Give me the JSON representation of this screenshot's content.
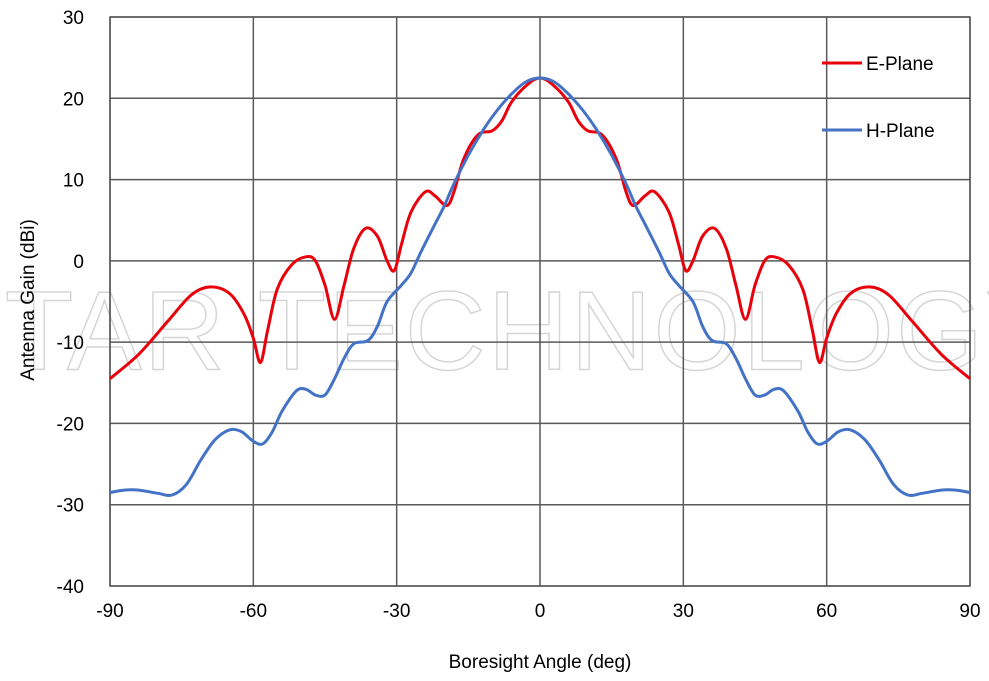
{
  "chart_data": {
    "type": "line",
    "title": "",
    "xlabel": "Boresight Angle (deg)",
    "ylabel": "Antenna Gain (dBi)",
    "xlim": [
      -90,
      90
    ],
    "ylim": [
      -40,
      30
    ],
    "xticks": [
      -90,
      -60,
      -30,
      0,
      30,
      60,
      90
    ],
    "yticks": [
      -40,
      -30,
      -20,
      -10,
      0,
      10,
      20,
      30
    ],
    "grid": true,
    "legend_position": "top-right",
    "watermark": "STAR TECHNOLOGY",
    "series": [
      {
        "name": "E-Plane",
        "color": "#e8000b",
        "points": [
          [
            -90,
            -14.5
          ],
          [
            -84,
            -11.5
          ],
          [
            -78,
            -7.5
          ],
          [
            -73,
            -4.2
          ],
          [
            -69,
            -3.2
          ],
          [
            -65,
            -4.0
          ],
          [
            -62,
            -6.5
          ],
          [
            -60,
            -9.5
          ],
          [
            -58.5,
            -12.5
          ],
          [
            -57,
            -8.5
          ],
          [
            -55,
            -3.5
          ],
          [
            -52,
            -0.5
          ],
          [
            -49,
            0.5
          ],
          [
            -47,
            0.0
          ],
          [
            -45,
            -3.0
          ],
          [
            -43,
            -7.2
          ],
          [
            -41,
            -3.0
          ],
          [
            -39,
            1.5
          ],
          [
            -36.5,
            4.0
          ],
          [
            -34,
            3.0
          ],
          [
            -32,
            0.0
          ],
          [
            -30.5,
            -1.2
          ],
          [
            -29,
            2.0
          ],
          [
            -27,
            6.0
          ],
          [
            -24,
            8.5
          ],
          [
            -22,
            8.0
          ],
          [
            -19.5,
            6.8
          ],
          [
            -18,
            8.5
          ],
          [
            -16,
            12.5
          ],
          [
            -13,
            15.5
          ],
          [
            -10,
            16.0
          ],
          [
            -8,
            17.2
          ],
          [
            -6,
            19.5
          ],
          [
            -3,
            21.5
          ],
          [
            0,
            22.5
          ],
          [
            3,
            21.5
          ],
          [
            6,
            19.5
          ],
          [
            8,
            17.2
          ],
          [
            10,
            16.0
          ],
          [
            13,
            15.5
          ],
          [
            16,
            12.5
          ],
          [
            18,
            8.5
          ],
          [
            19.5,
            6.8
          ],
          [
            22,
            8.0
          ],
          [
            24,
            8.5
          ],
          [
            27,
            6.0
          ],
          [
            29,
            2.0
          ],
          [
            30.5,
            -1.2
          ],
          [
            32,
            0.0
          ],
          [
            34,
            3.0
          ],
          [
            36.5,
            4.0
          ],
          [
            39,
            1.5
          ],
          [
            41,
            -3.0
          ],
          [
            43,
            -7.2
          ],
          [
            45,
            -3.0
          ],
          [
            47,
            0.0
          ],
          [
            49,
            0.5
          ],
          [
            52,
            -0.5
          ],
          [
            55,
            -3.5
          ],
          [
            57,
            -8.5
          ],
          [
            58.5,
            -12.5
          ],
          [
            60,
            -9.5
          ],
          [
            62,
            -6.5
          ],
          [
            65,
            -4.0
          ],
          [
            69,
            -3.2
          ],
          [
            73,
            -4.2
          ],
          [
            78,
            -7.5
          ],
          [
            84,
            -11.5
          ],
          [
            90,
            -14.5
          ]
        ]
      },
      {
        "name": "H-Plane",
        "color": "#4472c4",
        "points": [
          [
            -90,
            -28.5
          ],
          [
            -87,
            -28.2
          ],
          [
            -84,
            -28.2
          ],
          [
            -80,
            -28.6
          ],
          [
            -77,
            -28.8
          ],
          [
            -74,
            -27.5
          ],
          [
            -71,
            -24.5
          ],
          [
            -68,
            -22.0
          ],
          [
            -65,
            -20.8
          ],
          [
            -62.5,
            -21.0
          ],
          [
            -60,
            -22.2
          ],
          [
            -58,
            -22.5
          ],
          [
            -56,
            -21.0
          ],
          [
            -54,
            -18.5
          ],
          [
            -51,
            -16.0
          ],
          [
            -49,
            -15.8
          ],
          [
            -47,
            -16.5
          ],
          [
            -45,
            -16.5
          ],
          [
            -43,
            -14.5
          ],
          [
            -41,
            -12.0
          ],
          [
            -39,
            -10.2
          ],
          [
            -36,
            -9.8
          ],
          [
            -34,
            -8.0
          ],
          [
            -32,
            -5.0
          ],
          [
            -29,
            -3.0
          ],
          [
            -27,
            -1.5
          ],
          [
            -25,
            1.0
          ],
          [
            -22,
            4.5
          ],
          [
            -20,
            6.8
          ],
          [
            -18,
            9.5
          ],
          [
            -15,
            13.0
          ],
          [
            -12,
            16.0
          ],
          [
            -9,
            18.5
          ],
          [
            -6,
            20.5
          ],
          [
            -3,
            22.0
          ],
          [
            0,
            22.5
          ],
          [
            3,
            22.0
          ],
          [
            6,
            20.5
          ],
          [
            9,
            18.5
          ],
          [
            12,
            16.0
          ],
          [
            15,
            13.0
          ],
          [
            18,
            9.5
          ],
          [
            20,
            6.8
          ],
          [
            22,
            4.5
          ],
          [
            25,
            1.0
          ],
          [
            27,
            -1.5
          ],
          [
            29,
            -3.0
          ],
          [
            32,
            -5.0
          ],
          [
            34,
            -8.0
          ],
          [
            36,
            -9.8
          ],
          [
            39,
            -10.2
          ],
          [
            41,
            -12.0
          ],
          [
            43,
            -14.5
          ],
          [
            45,
            -16.5
          ],
          [
            47,
            -16.5
          ],
          [
            49,
            -15.8
          ],
          [
            51,
            -16.0
          ],
          [
            54,
            -18.5
          ],
          [
            56,
            -21.0
          ],
          [
            58,
            -22.5
          ],
          [
            60,
            -22.2
          ],
          [
            62.5,
            -21.0
          ],
          [
            65,
            -20.8
          ],
          [
            68,
            -22.0
          ],
          [
            71,
            -24.5
          ],
          [
            74,
            -27.5
          ],
          [
            77,
            -28.8
          ],
          [
            80,
            -28.6
          ],
          [
            84,
            -28.2
          ],
          [
            87,
            -28.2
          ],
          [
            90,
            -28.5
          ]
        ]
      }
    ]
  }
}
